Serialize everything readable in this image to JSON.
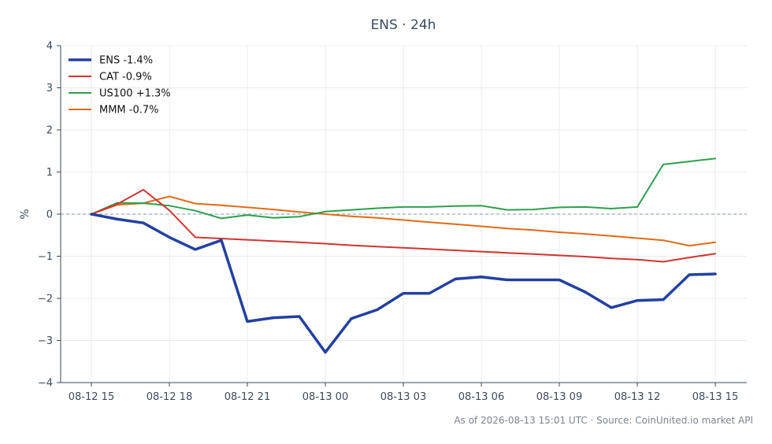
{
  "chart_data": {
    "type": "line",
    "title": "ENS · 24h",
    "ylabel": "%",
    "xlabel": "",
    "ylim": [
      -4,
      4
    ],
    "yticks": [
      -4,
      -3,
      -2,
      -1,
      0,
      1,
      2,
      3,
      4
    ],
    "ytick_labels": [
      "−4",
      "−3",
      "−2",
      "−1",
      "0",
      "1",
      "2",
      "3",
      "4"
    ],
    "x_tick_labels": [
      "08-12 15",
      "08-12 18",
      "08-12 21",
      "08-13 00",
      "08-13 03",
      "08-13 06",
      "08-13 09",
      "08-13 12",
      "08-13 15"
    ],
    "x": [
      "08-12 15",
      "08-12 16",
      "08-12 17",
      "08-12 18",
      "08-12 19",
      "08-12 20",
      "08-12 21",
      "08-12 22",
      "08-12 23",
      "08-13 00",
      "08-13 01",
      "08-13 02",
      "08-13 03",
      "08-13 04",
      "08-13 05",
      "08-13 06",
      "08-13 07",
      "08-13 08",
      "08-13 09",
      "08-13 10",
      "08-13 11",
      "08-13 12",
      "08-13 13",
      "08-13 14",
      "08-13 15"
    ],
    "grid": true,
    "legend_position": "top-left",
    "series": [
      {
        "name": "ENS -1.4%",
        "color": "#2340a0",
        "values": [
          0,
          -0.12,
          -0.21,
          -0.55,
          -0.84,
          -0.62,
          -2.55,
          -2.46,
          -2.43,
          -3.28,
          -2.48,
          -2.27,
          -1.88,
          -1.88,
          -1.54,
          -1.49,
          -1.56,
          -1.56,
          -1.56,
          -1.85,
          -2.22,
          -2.05,
          -2.03,
          -1.44,
          -1.42
        ]
      },
      {
        "name": "CAT -0.9%",
        "color": "#d03530",
        "values": [
          0,
          0.24,
          0.58,
          0.09,
          -0.55,
          -0.58,
          -0.61,
          -0.64,
          -0.67,
          -0.7,
          -0.74,
          -0.77,
          -0.8,
          -0.83,
          -0.86,
          -0.89,
          -0.92,
          -0.95,
          -0.98,
          -1.01,
          -1.05,
          -1.08,
          -1.13,
          -1.03,
          -0.94
        ]
      },
      {
        "name": "US100 +1.3%",
        "color": "#2ca04c",
        "values": [
          0,
          0.27,
          0.26,
          0.2,
          0.08,
          -0.1,
          -0.02,
          -0.09,
          -0.06,
          0.06,
          0.1,
          0.14,
          0.17,
          0.17,
          0.19,
          0.2,
          0.1,
          0.11,
          0.16,
          0.17,
          0.13,
          0.17,
          1.18,
          1.25,
          1.32
        ]
      },
      {
        "name": "MMM -0.7%",
        "color": "#e26a16",
        "values": [
          0,
          0.22,
          0.26,
          0.42,
          0.25,
          0.21,
          0.16,
          0.11,
          0.05,
          0.0,
          -0.05,
          -0.09,
          -0.14,
          -0.19,
          -0.24,
          -0.29,
          -0.34,
          -0.38,
          -0.43,
          -0.47,
          -0.52,
          -0.57,
          -0.62,
          -0.75,
          -0.67
        ]
      }
    ]
  },
  "footer": {
    "text": "As of 2026-08-13 15:01 UTC · Source: CoinUnited.io market API"
  }
}
